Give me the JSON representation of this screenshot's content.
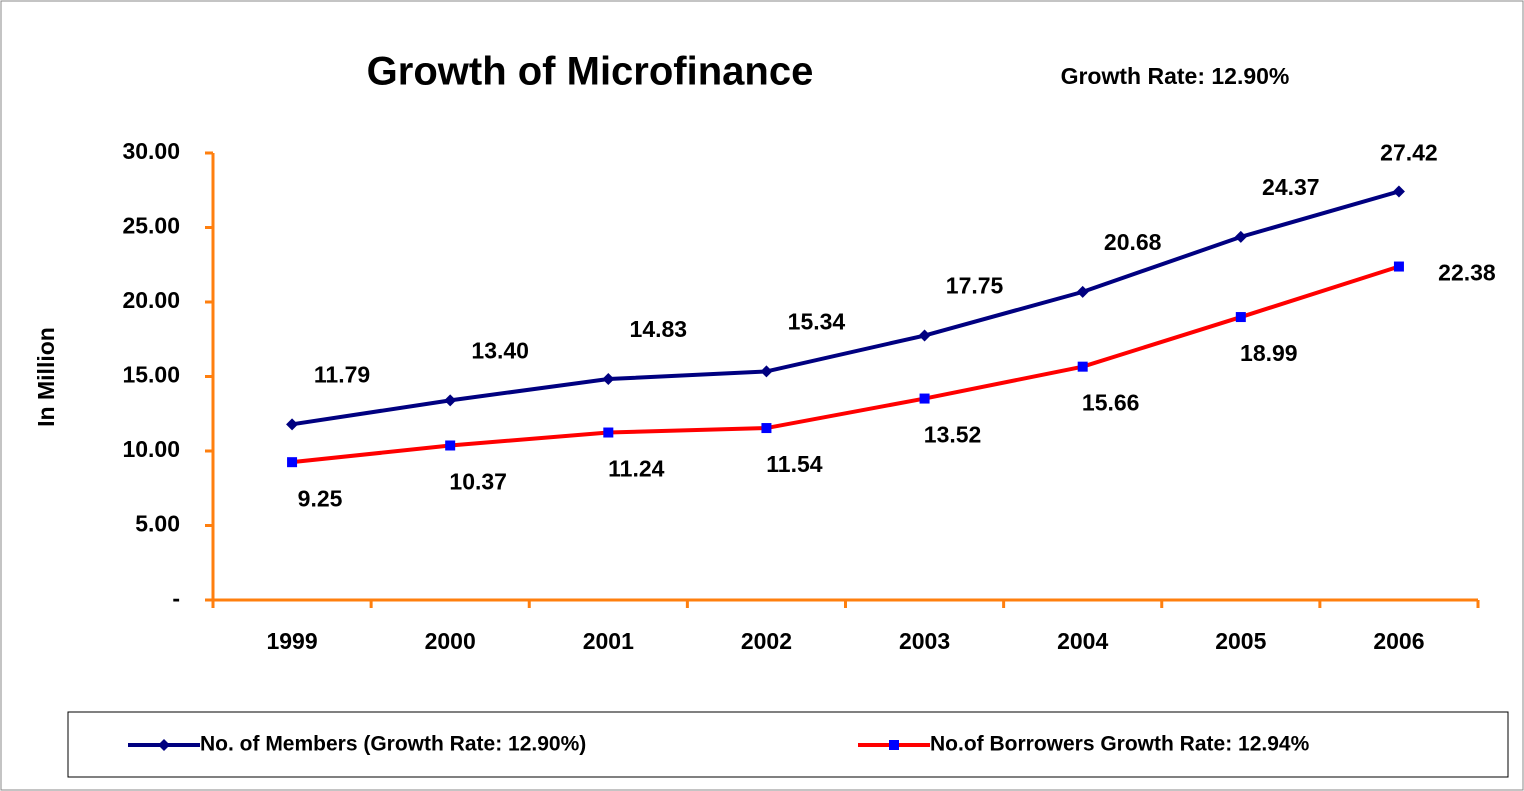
{
  "chart_data": {
    "type": "line",
    "title": "Growth of Microfinance",
    "subtitle": "Growth Rate: 12.90%",
    "y_label": "In Million",
    "categories": [
      "1999",
      "2000",
      "2001",
      "2002",
      "2003",
      "2004",
      "2005",
      "2006"
    ],
    "series": [
      {
        "name": "No. of Members (Growth Rate: 12.90%)",
        "color": "#000080",
        "marker_color": "#000080",
        "marker": "diamond",
        "values": [
          11.79,
          13.4,
          14.83,
          15.34,
          17.75,
          20.68,
          24.37,
          27.42
        ],
        "value_labels": [
          "11.79",
          "13.40",
          "14.83",
          "15.34",
          "17.75",
          "20.68",
          "24.37",
          "27.42"
        ]
      },
      {
        "name": "No.of Borrowers Growth Rate: 12.94%",
        "color": "#ff0000",
        "marker_color": "#0000ff",
        "marker": "square",
        "values": [
          9.25,
          10.37,
          11.24,
          11.54,
          13.52,
          15.66,
          18.99,
          22.38
        ],
        "value_labels": [
          "9.25",
          "10.37",
          "11.24",
          "11.54",
          "13.52",
          "15.66",
          "18.99",
          "22.38"
        ]
      }
    ],
    "ylim": [
      0,
      30
    ],
    "yticks": [
      {
        "value": 0,
        "label": "-"
      },
      {
        "value": 5,
        "label": "5.00"
      },
      {
        "value": 10,
        "label": "10.00"
      },
      {
        "value": 15,
        "label": "15.00"
      },
      {
        "value": 20,
        "label": "20.00"
      },
      {
        "value": 25,
        "label": "25.00"
      },
      {
        "value": 30,
        "label": "30.00"
      }
    ],
    "axis_color": "#ff7f0e",
    "grid": false,
    "legend": "bottom"
  }
}
